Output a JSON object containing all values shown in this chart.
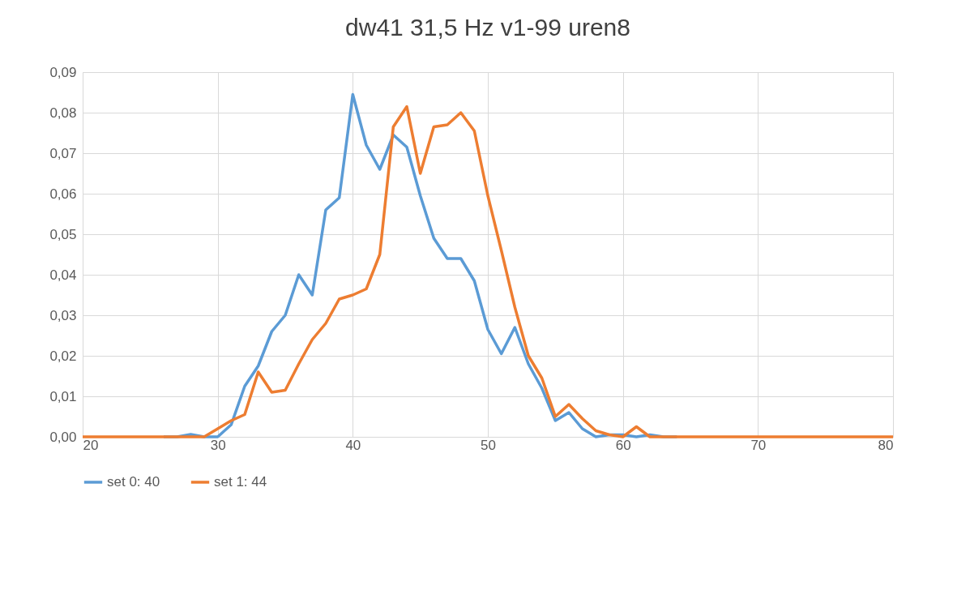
{
  "chart_data": {
    "type": "line",
    "title": "dw41 31,5 Hz v1-99 uren8",
    "x": [
      20,
      21,
      22,
      23,
      24,
      25,
      26,
      27,
      28,
      29,
      30,
      31,
      32,
      33,
      34,
      35,
      36,
      37,
      38,
      39,
      40,
      41,
      42,
      43,
      44,
      45,
      46,
      47,
      48,
      49,
      50,
      51,
      52,
      53,
      54,
      55,
      56,
      57,
      58,
      59,
      60,
      61,
      62,
      63,
      64,
      65,
      66,
      67,
      68,
      69,
      70,
      71,
      72,
      73,
      74,
      75,
      76,
      77,
      78,
      79,
      80
    ],
    "series": [
      {
        "name": "set 0: 40",
        "color": "#5b9bd5",
        "values": [
          null,
          null,
          null,
          null,
          null,
          null,
          0,
          0,
          0.0006,
          0,
          0,
          0.003,
          0.0125,
          0.0175,
          0.026,
          0.03,
          0.04,
          0.035,
          0.056,
          0.059,
          0.0845,
          0.072,
          0.066,
          0.0745,
          0.0715,
          0.0595,
          0.049,
          0.044,
          0.044,
          0.0385,
          0.0265,
          0.0205,
          0.027,
          0.018,
          0.012,
          0.004,
          0.006,
          0.002,
          0,
          0.0005,
          0.0005,
          0,
          0.0005,
          0,
          0,
          null,
          null,
          null,
          null,
          null,
          null,
          null,
          null,
          null,
          null,
          null,
          null,
          null,
          null,
          null,
          null
        ]
      },
      {
        "name": "set 1: 44",
        "color": "#ed7d31",
        "values": [
          0,
          0,
          0,
          0,
          0,
          0,
          0,
          0,
          0,
          0,
          0.002,
          0.004,
          0.0055,
          0.016,
          0.011,
          0.0115,
          0.018,
          0.024,
          0.028,
          0.034,
          0.035,
          0.0365,
          0.045,
          0.0765,
          0.0815,
          0.065,
          0.0765,
          0.077,
          0.08,
          0.0755,
          0.0595,
          0.046,
          0.032,
          0.02,
          0.0145,
          0.005,
          0.008,
          0.0045,
          0.0015,
          0.0005,
          0,
          0.0025,
          0,
          0,
          0,
          0,
          0,
          0,
          0,
          0,
          0,
          0,
          0,
          0,
          0,
          0,
          0,
          0,
          0,
          0,
          0
        ]
      }
    ],
    "xlim": [
      20,
      80
    ],
    "xticks": [
      20,
      30,
      40,
      50,
      60,
      70,
      80
    ],
    "ylim": [
      0,
      0.09
    ],
    "yticks": [
      {
        "value": 0,
        "label": "0,00"
      },
      {
        "value": 0.01,
        "label": "0,01"
      },
      {
        "value": 0.02,
        "label": "0,02"
      },
      {
        "value": 0.03,
        "label": "0,03"
      },
      {
        "value": 0.04,
        "label": "0,04"
      },
      {
        "value": 0.05,
        "label": "0,05"
      },
      {
        "value": 0.06,
        "label": "0,06"
      },
      {
        "value": 0.07,
        "label": "0,07"
      },
      {
        "value": 0.08,
        "label": "0,08"
      },
      {
        "value": 0.09,
        "label": "0,09"
      }
    ],
    "grid": true,
    "legend": "bottom",
    "marker": "none",
    "line_style": "solid"
  }
}
